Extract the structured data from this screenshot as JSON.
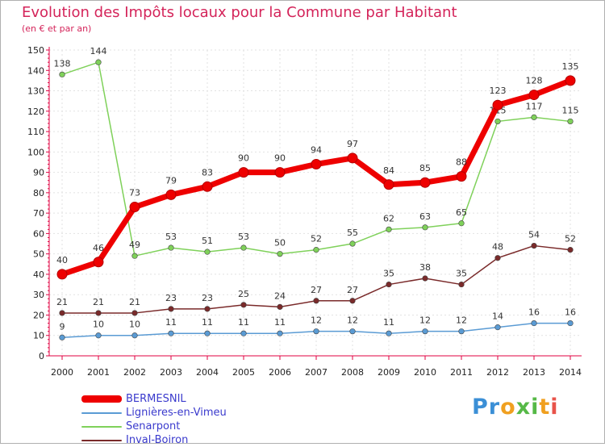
{
  "chart_data": {
    "type": "line",
    "title": "Evolution des Impôts locaux pour la Commune par Habitant",
    "subtitle": "(en € et par an)",
    "xlabel": "",
    "ylabel": "",
    "x": [
      "2000",
      "2001",
      "2002",
      "2003",
      "2004",
      "2005",
      "2006",
      "2007",
      "2008",
      "2009",
      "2010",
      "2011",
      "2012",
      "2013",
      "2014"
    ],
    "ylim": [
      0,
      150
    ],
    "yticks": [
      0,
      10,
      20,
      30,
      40,
      50,
      60,
      70,
      80,
      90,
      100,
      110,
      120,
      130,
      140,
      150
    ],
    "grid": true,
    "legend_position": "bottom-left",
    "series": [
      {
        "name": "BERMESNIL",
        "color": "#ee0000",
        "values": [
          40,
          46,
          73,
          79,
          83,
          90,
          90,
          94,
          97,
          84,
          85,
          88,
          123,
          128,
          135
        ]
      },
      {
        "name": "Lignières-en-Vimeu",
        "color": "#5a9bd4",
        "values": [
          9,
          10,
          10,
          11,
          11,
          11,
          11,
          12,
          12,
          11,
          12,
          12,
          14,
          16,
          16
        ]
      },
      {
        "name": "Senarpont",
        "color": "#7fd15a",
        "values": [
          138,
          144,
          49,
          53,
          51,
          53,
          50,
          52,
          55,
          62,
          63,
          65,
          115,
          117,
          115
        ]
      },
      {
        "name": "Inval-Boiron",
        "color": "#7a2a2a",
        "values": [
          21,
          21,
          21,
          23,
          23,
          25,
          24,
          27,
          27,
          35,
          38,
          35,
          48,
          54,
          52
        ]
      }
    ]
  },
  "brand": {
    "letters": [
      "P",
      "r",
      "o",
      "x",
      "i",
      "t",
      "i"
    ],
    "colors": [
      "#3b8fd6",
      "#3b8fd6",
      "#f0a020",
      "#56b947",
      "#56b947",
      "#f0a020",
      "#e8534a"
    ]
  }
}
